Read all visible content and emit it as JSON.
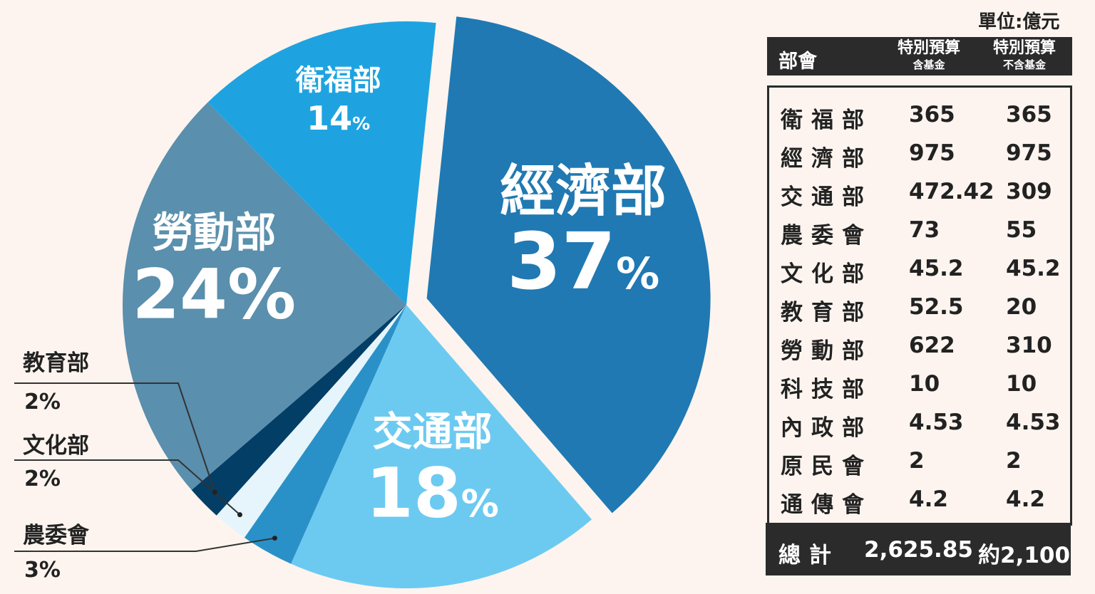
{
  "unit_label": "單位:億元",
  "colors": {
    "economy": "#2079b2",
    "transport": "#6ccaf1",
    "agriculture": "#2a91c8",
    "culture": "#e5f5fb",
    "education": "#023e66",
    "labor": "#5a8fad",
    "welfare": "#1fa3e0",
    "table_dark": "#2b2b2b",
    "background": "#fdf4ef"
  },
  "chart_data": {
    "type": "pie",
    "slices": [
      {
        "label": "經濟部",
        "value": 37,
        "value_label": "37",
        "pct_sign": "%"
      },
      {
        "label": "交通部",
        "value": 18,
        "value_label": "18",
        "pct_sign": "%"
      },
      {
        "label": "農委會",
        "value": 3,
        "value_label": "3%"
      },
      {
        "label": "文化部",
        "value": 2,
        "value_label": "2%"
      },
      {
        "label": "教育部",
        "value": 2,
        "value_label": "2%"
      },
      {
        "label": "勞動部",
        "value": 24,
        "value_label": "24%"
      },
      {
        "label": "衛福部",
        "value": 14,
        "value_label": "14",
        "pct_sign": "%"
      }
    ],
    "exploded": "經濟部"
  },
  "table": {
    "headers": {
      "dept": "部會",
      "col1_main": "特別預算",
      "col1_sub": "含基金",
      "col2_main": "特別預算",
      "col2_sub": "不含基金"
    },
    "rows": [
      {
        "dept": "衛福部",
        "with_fund": "365",
        "without_fund": "365"
      },
      {
        "dept": "經濟部",
        "with_fund": "975",
        "without_fund": "975"
      },
      {
        "dept": "交通部",
        "with_fund": "472.42",
        "without_fund": "309"
      },
      {
        "dept": "農委會",
        "with_fund": "73",
        "without_fund": "55"
      },
      {
        "dept": "文化部",
        "with_fund": "45.2",
        "without_fund": "45.2"
      },
      {
        "dept": "教育部",
        "with_fund": "52.5",
        "without_fund": "20"
      },
      {
        "dept": "勞動部",
        "with_fund": "622",
        "without_fund": "310"
      },
      {
        "dept": "科技部",
        "with_fund": "10",
        "without_fund": "10"
      },
      {
        "dept": "內政部",
        "with_fund": "4.53",
        "without_fund": "4.53"
      },
      {
        "dept": "原民會",
        "with_fund": "2",
        "without_fund": "2"
      },
      {
        "dept": "通傳會",
        "with_fund": "4.2",
        "without_fund": "4.2"
      }
    ],
    "total": {
      "label": "總計",
      "with_fund": "2,625.85",
      "without_fund": "約2,100"
    }
  }
}
